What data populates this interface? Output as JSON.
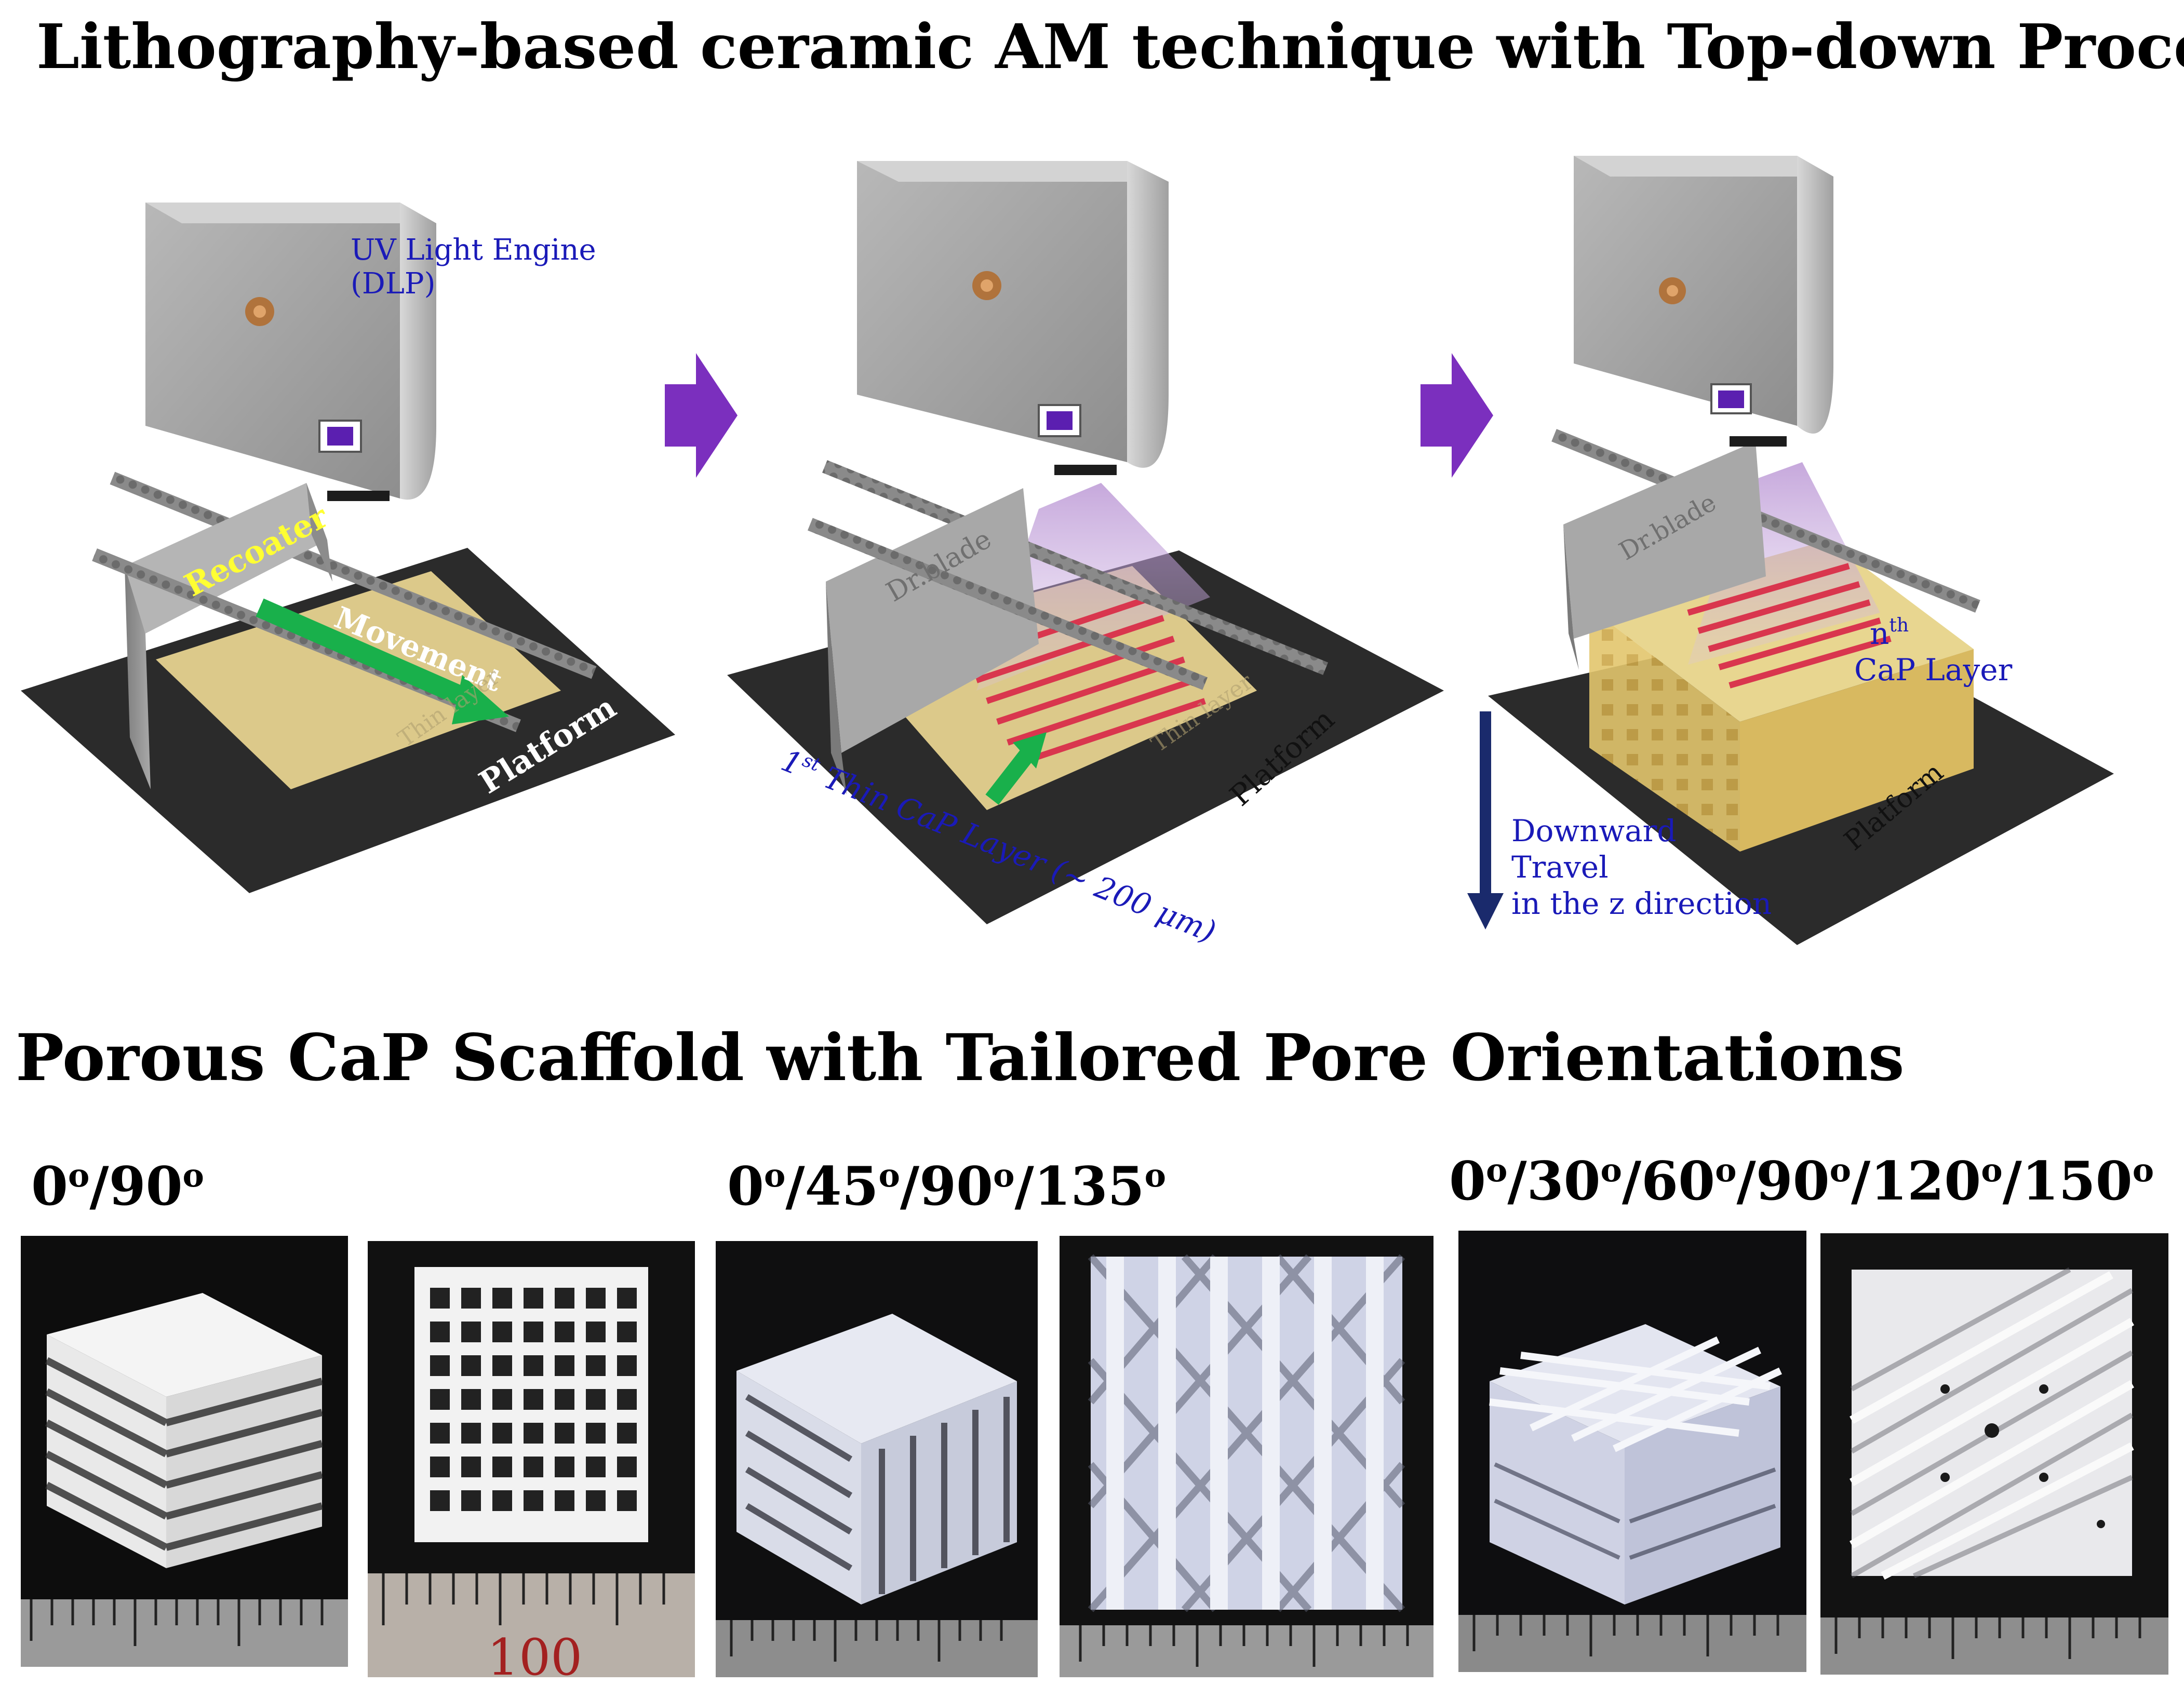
{
  "titles": {
    "main": "Lithography-based ceramic AM technique with Top-down Process",
    "section": "Porous CaP Scaffold with Tailored Pore Orientations"
  },
  "process": {
    "step1": {
      "engine_label_line1": "UV Light Engine",
      "engine_label_line2": "(DLP)",
      "recoater_label": "Recoater",
      "movement_label": "Movement",
      "faint_label": "Thin layer",
      "platform_label": "Platform"
    },
    "step2": {
      "blade_label": "Dr.blade",
      "layer_label_prefix": "1",
      "layer_label_sup": "st",
      "layer_label_suffix": " Thin CaP Layer (~ 200 μm)",
      "faint_label": "Thin layer",
      "platform_label": "Platform"
    },
    "step3": {
      "blade_label": "Dr.blade",
      "layer_label_n": "n",
      "layer_label_sup": "th",
      "layer_label_line2": "CaP Layer",
      "travel_line1": "Downward",
      "travel_line2": "Travel",
      "travel_line3": "in the z direction",
      "platform_label": "Platform"
    }
  },
  "scaffolds": {
    "group1_label": [
      "0",
      "o",
      "/90",
      "o"
    ],
    "group2_label": [
      "0",
      "o",
      "/45",
      "o",
      "/90",
      "o",
      "/135",
      "o"
    ],
    "group3_label": [
      "0",
      "o",
      "/30",
      "o",
      "/60",
      "o",
      "/90",
      "o",
      "/120",
      "o",
      "/150",
      "o"
    ],
    "ruler_number": "100"
  },
  "colors": {
    "arrow_purple": "#7b2fbe",
    "arrow_green": "#19b04b",
    "arrow_navy": "#1a2a6c",
    "text_blue": "#1a1ab8",
    "recoater_yellow": "#ffff33",
    "resin": "#dcc98a",
    "raster": "#d9364e",
    "platform": "#2a2a2a"
  }
}
